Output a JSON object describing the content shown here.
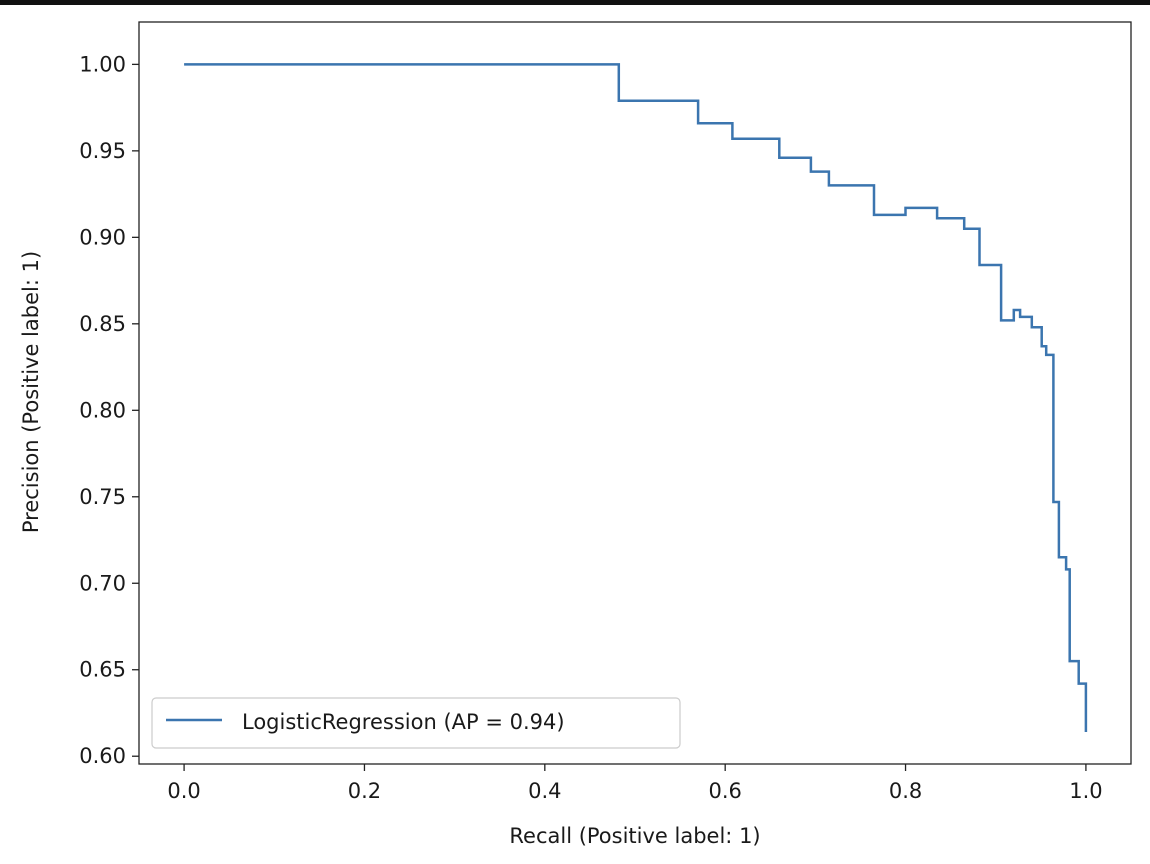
{
  "chart_data": {
    "type": "line",
    "title": "",
    "xlabel": "Recall (Positive label: 1)",
    "ylabel": "Precision (Positive label: 1)",
    "xlim": [
      -0.05,
      1.05
    ],
    "ylim": [
      0.5955,
      1.0245
    ],
    "x_ticks": [
      0.0,
      0.2,
      0.4,
      0.6,
      0.8,
      1.0
    ],
    "x_tick_labels": [
      "0.0",
      "0.2",
      "0.4",
      "0.6",
      "0.8",
      "1.0"
    ],
    "y_ticks": [
      0.6,
      0.65,
      0.7,
      0.75,
      0.8,
      0.85,
      0.9,
      0.95,
      1.0
    ],
    "y_tick_labels": [
      "0.60",
      "0.65",
      "0.70",
      "0.75",
      "0.80",
      "0.85",
      "0.90",
      "0.95",
      "1.00"
    ],
    "grid": false,
    "legend_position": "lower-left",
    "series": [
      {
        "name": "LogisticRegression (AP = 0.94)",
        "color": "#3b75af",
        "drawstyle": "steps-post",
        "x": [
          1.0,
          1.0,
          0.992,
          0.992,
          0.982,
          0.982,
          0.978,
          0.978,
          0.97,
          0.97,
          0.964,
          0.964,
          0.956,
          0.956,
          0.951,
          0.951,
          0.94,
          0.94,
          0.927,
          0.927,
          0.92,
          0.92,
          0.906,
          0.906,
          0.882,
          0.882,
          0.865,
          0.865,
          0.835,
          0.835,
          0.8,
          0.8,
          0.765,
          0.765,
          0.715,
          0.715,
          0.695,
          0.695,
          0.66,
          0.66,
          0.608,
          0.608,
          0.57,
          0.57,
          0.482,
          0.482,
          0.422,
          0.422,
          0.405,
          0.405,
          0.0
        ],
        "y": [
          0.614,
          0.642,
          0.642,
          0.655,
          0.655,
          0.708,
          0.708,
          0.715,
          0.715,
          0.747,
          0.747,
          0.832,
          0.832,
          0.837,
          0.837,
          0.848,
          0.848,
          0.854,
          0.854,
          0.858,
          0.858,
          0.852,
          0.852,
          0.884,
          0.884,
          0.905,
          0.905,
          0.911,
          0.911,
          0.917,
          0.917,
          0.913,
          0.913,
          0.93,
          0.93,
          0.938,
          0.938,
          0.946,
          0.946,
          0.957,
          0.957,
          0.966,
          0.966,
          0.979,
          0.979,
          1.0,
          1.0,
          1.0,
          1.0,
          1.0,
          1.0
        ]
      }
    ]
  }
}
